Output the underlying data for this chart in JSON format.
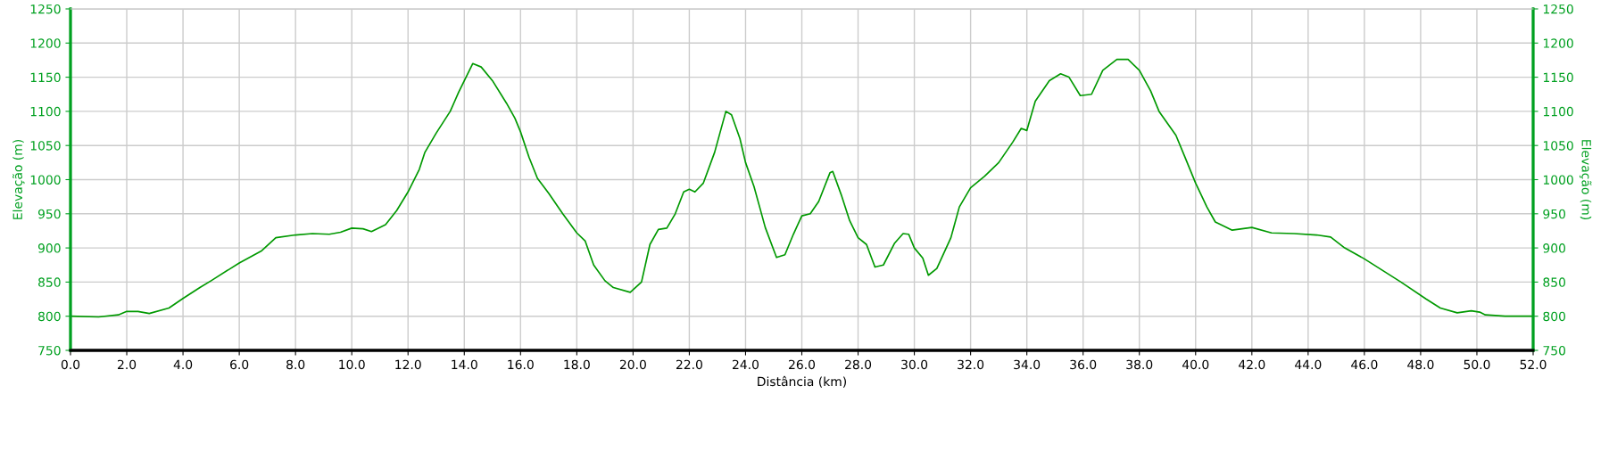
{
  "chart_data": {
    "type": "line",
    "xlabel": "Distância (km)",
    "ylabel": "Elevação (m)",
    "y2label": "Elevação (m)",
    "x": [
      0,
      1,
      1.7,
      2.0,
      2.4,
      2.8,
      3.5,
      4.0,
      4.6,
      5.0,
      6.0,
      6.8,
      7.3,
      8.0,
      8.6,
      9.2,
      9.6,
      10.0,
      10.4,
      10.7,
      11.2,
      11.6,
      12.0,
      12.4,
      12.6,
      13.0,
      13.5,
      13.8,
      14.3,
      14.6,
      15.0,
      15.5,
      15.8,
      16.0,
      16.3,
      16.6,
      17.0,
      17.5,
      18.0,
      18.3,
      18.6,
      19.0,
      19.3,
      19.9,
      20.3,
      20.6,
      20.9,
      21.2,
      21.5,
      21.8,
      22.0,
      22.2,
      22.5,
      22.9,
      23.3,
      23.5,
      23.8,
      24.0,
      24.3,
      24.5,
      24.7,
      25.1,
      25.4,
      25.7,
      26.0,
      26.3,
      26.6,
      27.0,
      27.1,
      27.4,
      27.7,
      28.0,
      28.3,
      28.6,
      28.9,
      29.3,
      29.6,
      29.8,
      30.0,
      30.3,
      30.5,
      30.8,
      31.3,
      31.6,
      32.0,
      32.5,
      33.0,
      33.5,
      33.8,
      34.0,
      34.3,
      34.8,
      35.2,
      35.5,
      35.9,
      36.3,
      36.7,
      37.2,
      37.6,
      38.0,
      38.4,
      38.7,
      39.3,
      39.6,
      40.0,
      40.4,
      40.7,
      41.3,
      42.0,
      42.7,
      43.5,
      44.3,
      44.8,
      45.3,
      46.0,
      47.3,
      48.2,
      48.7,
      49.3,
      49.8,
      50.1,
      50.3,
      51.0,
      52.0
    ],
    "series": [
      {
        "color": "#009900",
        "values": [
          800,
          799,
          802,
          807,
          807,
          804,
          812,
          826,
          842,
          852,
          878,
          896,
          915,
          919,
          921,
          920,
          923,
          929,
          928,
          924,
          934,
          955,
          982,
          1015,
          1040,
          1068,
          1100,
          1128,
          1170,
          1165,
          1145,
          1112,
          1090,
          1070,
          1033,
          1002,
          980,
          950,
          922,
          910,
          875,
          852,
          842,
          835,
          850,
          905,
          927,
          929,
          950,
          982,
          986,
          982,
          995,
          1040,
          1100,
          1095,
          1060,
          1025,
          990,
          960,
          930,
          886,
          890,
          920,
          947,
          950,
          968,
          1010,
          1012,
          978,
          940,
          915,
          905,
          872,
          875,
          907,
          921,
          920,
          900,
          885,
          860,
          870,
          915,
          960,
          988,
          1005,
          1025,
          1055,
          1075,
          1072,
          1115,
          1145,
          1155,
          1150,
          1123,
          1125,
          1160,
          1176,
          1176,
          1160,
          1130,
          1100,
          1065,
          1035,
          995,
          960,
          938,
          926,
          930,
          922,
          921,
          919,
          916,
          900,
          884,
          850,
          825,
          812,
          805,
          808,
          806,
          802,
          800,
          800
        ]
      }
    ],
    "xlim": [
      0,
      52
    ],
    "xticks": [
      {
        "value": 0,
        "label": "0.0"
      },
      {
        "value": 2,
        "label": "2.0"
      },
      {
        "value": 4,
        "label": "4.0"
      },
      {
        "value": 6,
        "label": "6.0"
      },
      {
        "value": 8,
        "label": "8.0"
      },
      {
        "value": 10,
        "label": "10.0"
      },
      {
        "value": 12,
        "label": "12.0"
      },
      {
        "value": 14,
        "label": "14.0"
      },
      {
        "value": 16,
        "label": "16.0"
      },
      {
        "value": 18,
        "label": "18.0"
      },
      {
        "value": 20,
        "label": "20.0"
      },
      {
        "value": 22,
        "label": "22.0"
      },
      {
        "value": 24,
        "label": "24.0"
      },
      {
        "value": 26,
        "label": "26.0"
      },
      {
        "value": 28,
        "label": "28.0"
      },
      {
        "value": 30,
        "label": "30.0"
      },
      {
        "value": 32,
        "label": "32.0"
      },
      {
        "value": 34,
        "label": "34.0"
      },
      {
        "value": 36,
        "label": "36.0"
      },
      {
        "value": 38,
        "label": "38.0"
      },
      {
        "value": 40,
        "label": "40.0"
      },
      {
        "value": 42,
        "label": "42.0"
      },
      {
        "value": 44,
        "label": "44.0"
      },
      {
        "value": 46,
        "label": "46.0"
      },
      {
        "value": 48,
        "label": "48.0"
      },
      {
        "value": 50,
        "label": "50.0"
      },
      {
        "value": 52,
        "label": "52.0"
      }
    ],
    "ylim": [
      750,
      1250
    ],
    "yticks": [
      750,
      800,
      850,
      900,
      950,
      1000,
      1050,
      1100,
      1150,
      1200,
      1250
    ],
    "y2lim": [
      750,
      1250
    ],
    "y2ticks": [
      750,
      800,
      850,
      900,
      950,
      1000,
      1050,
      1100,
      1150,
      1200,
      1250
    ],
    "grid": true,
    "marker": "none",
    "line_style": "solid"
  }
}
